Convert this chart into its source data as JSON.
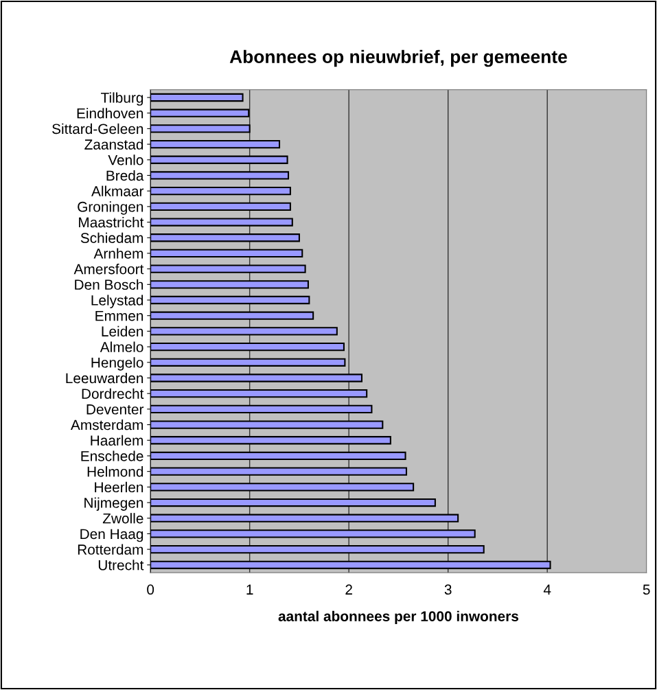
{
  "chart_data": {
    "type": "bar",
    "orientation": "horizontal",
    "title": "Abonnees op nieuwbrief, per gemeente",
    "xlabel": "aantal abonnees per 1000 inwoners",
    "categories": [
      "Tilburg",
      "Eindhoven",
      "Sittard-Geleen",
      "Zaanstad",
      "Venlo",
      "Breda",
      "Alkmaar",
      "Groningen",
      "Maastricht",
      "Schiedam",
      "Arnhem",
      "Amersfoort",
      "Den Bosch",
      "Lelystad",
      "Emmen",
      "Leiden",
      "Almelo",
      "Hengelo",
      "Leeuwarden",
      "Dordrecht",
      "Deventer",
      "Amsterdam",
      "Haarlem",
      "Enschede",
      "Helmond",
      "Heerlen",
      "Nijmegen",
      "Zwolle",
      "Den Haag",
      "Rotterdam",
      "Utrecht"
    ],
    "values": [
      0.93,
      0.99,
      1.0,
      1.3,
      1.38,
      1.39,
      1.41,
      1.41,
      1.43,
      1.5,
      1.53,
      1.56,
      1.59,
      1.6,
      1.64,
      1.88,
      1.95,
      1.96,
      2.13,
      2.18,
      2.23,
      2.34,
      2.42,
      2.57,
      2.58,
      2.65,
      2.87,
      3.1,
      3.27,
      3.36,
      4.03
    ],
    "color": "#9999ff",
    "xlim": [
      0,
      5
    ],
    "xticks": [
      0,
      1,
      2,
      3,
      4,
      5
    ],
    "grid": "x"
  }
}
